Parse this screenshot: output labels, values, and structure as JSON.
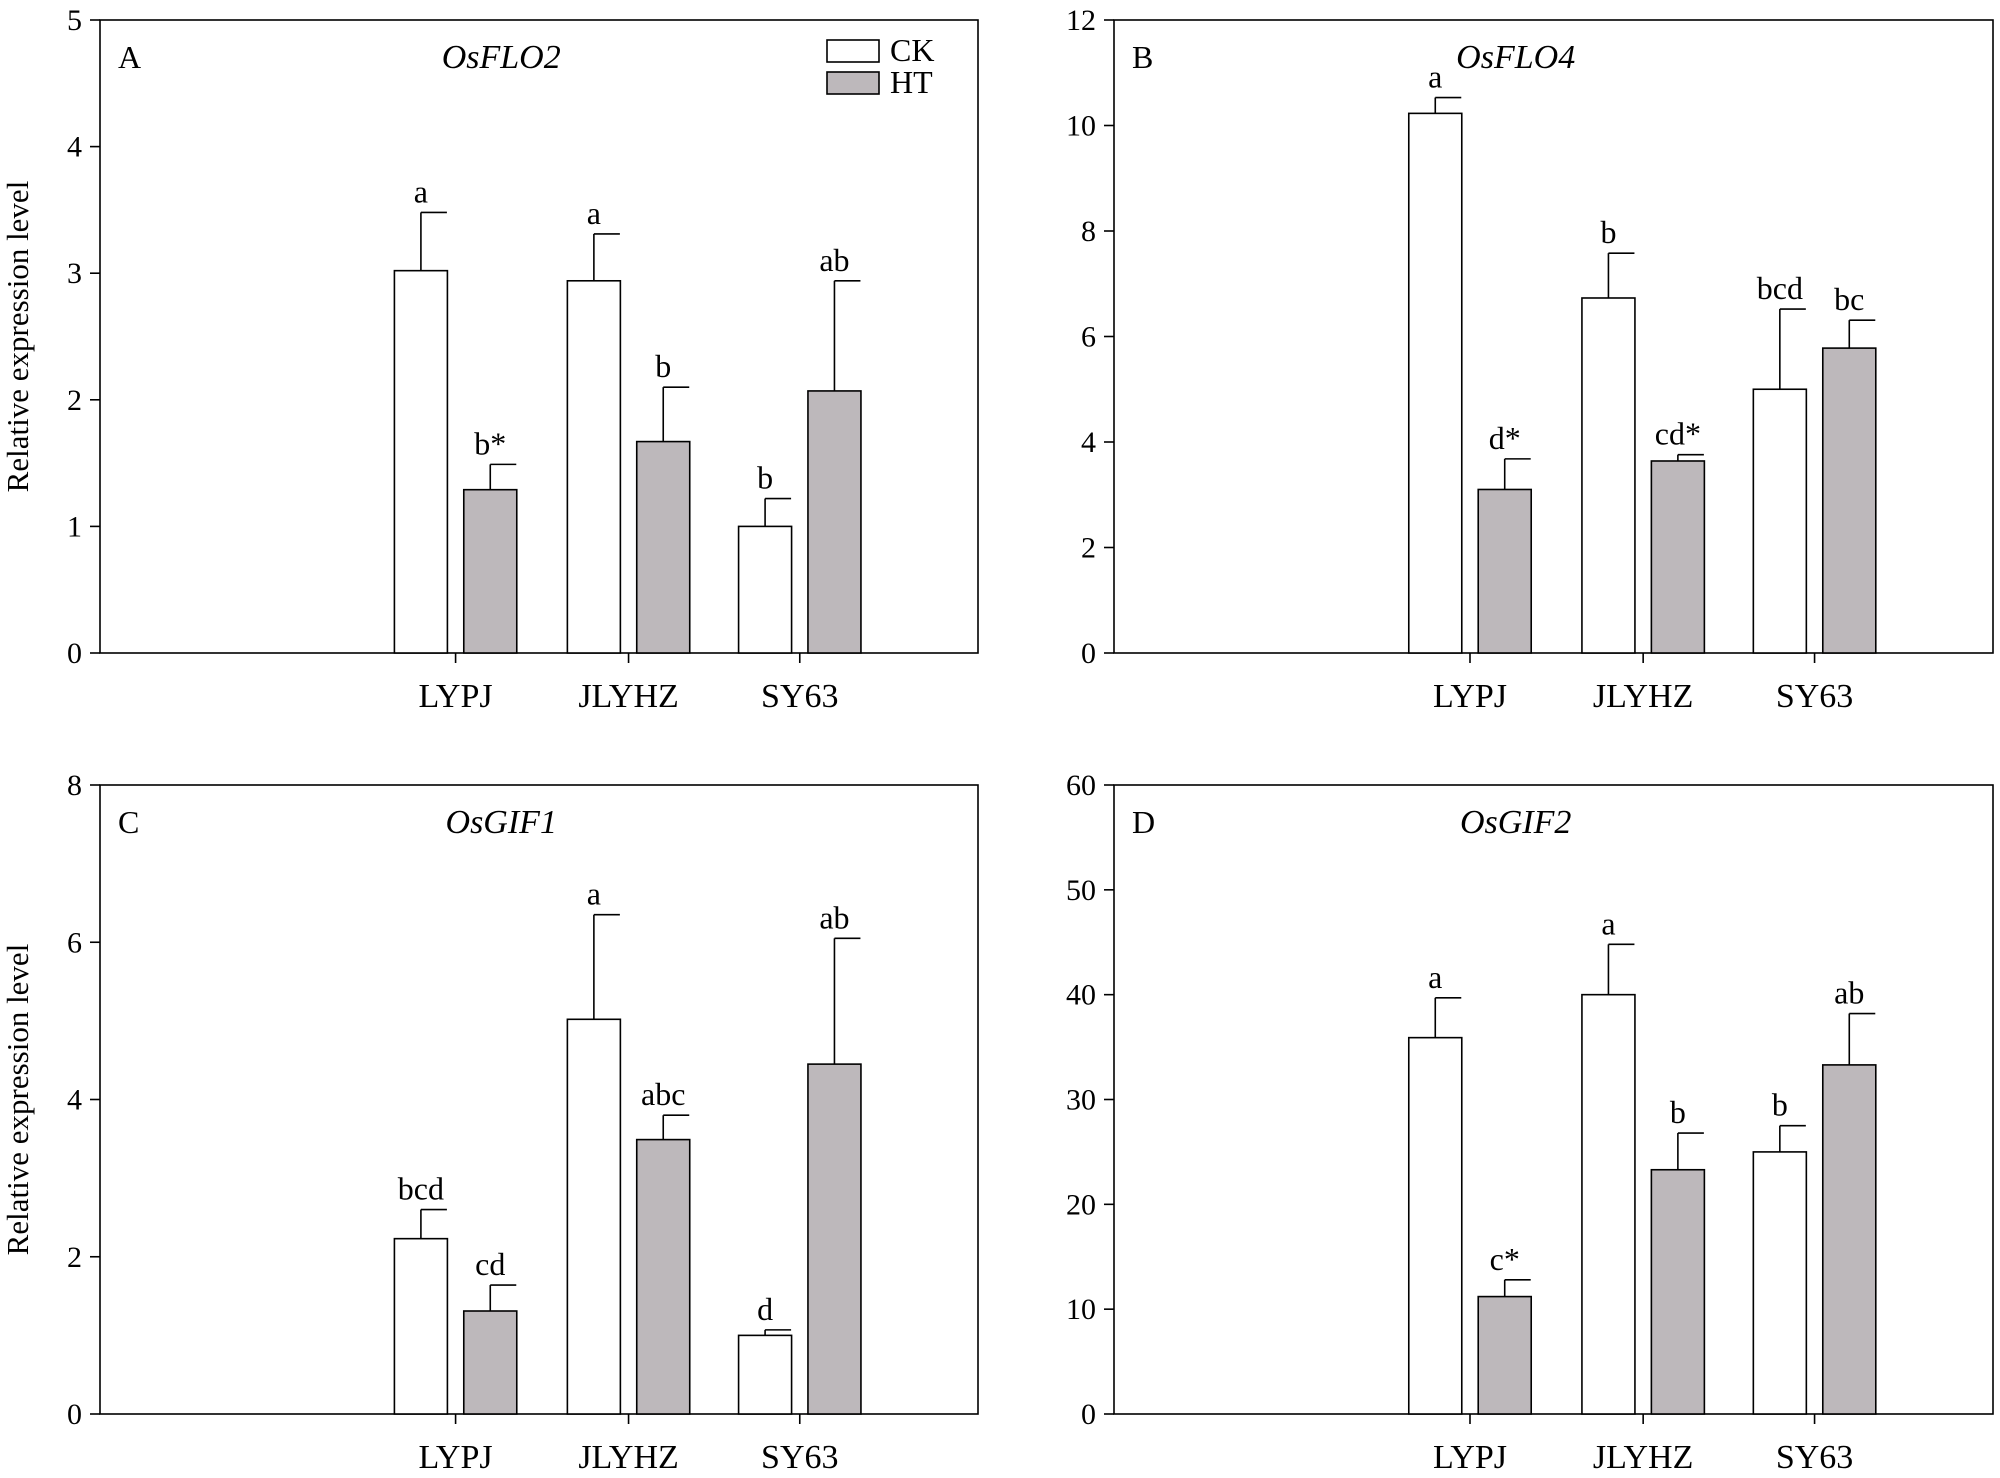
{
  "legend": [
    {
      "name": "CK",
      "color": "#ffffff"
    },
    {
      "name": "HT",
      "color": "#bdb8bb"
    }
  ],
  "chart_data": [
    {
      "type": "bar",
      "panel": "A",
      "title": "OsFLO2",
      "ylabel": "Relative expression level",
      "xlabel": "",
      "categories": [
        "LYPJ",
        "JLYHZ",
        "SY63"
      ],
      "ylim": [
        0,
        5
      ],
      "yticks": [
        0,
        1,
        2,
        3,
        4,
        5
      ],
      "series": [
        {
          "name": "CK",
          "color": "#ffffff",
          "values": [
            3.02,
            2.94,
            1.0
          ],
          "errors": [
            0.46,
            0.37,
            0.22
          ],
          "labels": [
            "a",
            "a",
            "b"
          ]
        },
        {
          "name": "HT",
          "color": "#bdb8bb",
          "values": [
            1.29,
            1.67,
            2.07
          ],
          "errors": [
            0.2,
            0.43,
            0.87
          ],
          "labels": [
            "b*",
            "b",
            "ab"
          ]
        }
      ]
    },
    {
      "type": "bar",
      "panel": "B",
      "title": "OsFLO4",
      "ylabel": "",
      "xlabel": "",
      "categories": [
        "LYPJ",
        "JLYHZ",
        "SY63"
      ],
      "ylim": [
        0,
        12
      ],
      "yticks": [
        0,
        2,
        4,
        6,
        8,
        10,
        12
      ],
      "series": [
        {
          "name": "CK",
          "color": "#ffffff",
          "values": [
            10.23,
            6.73,
            5.0
          ],
          "errors": [
            0.3,
            0.85,
            1.52
          ],
          "labels": [
            "a",
            "b",
            "bcd"
          ]
        },
        {
          "name": "HT",
          "color": "#bdb8bb",
          "values": [
            3.1,
            3.64,
            5.78
          ],
          "errors": [
            0.58,
            0.12,
            0.53
          ],
          "labels": [
            "d*",
            "cd*",
            "bc"
          ]
        }
      ]
    },
    {
      "type": "bar",
      "panel": "C",
      "title": "OsGIF1",
      "ylabel": "Relative expression level",
      "xlabel": "",
      "categories": [
        "LYPJ",
        "JLYHZ",
        "SY63"
      ],
      "ylim": [
        0,
        8
      ],
      "yticks": [
        0,
        2,
        4,
        6,
        8
      ],
      "series": [
        {
          "name": "CK",
          "color": "#ffffff",
          "values": [
            2.23,
            5.02,
            1.0
          ],
          "errors": [
            0.37,
            1.33,
            0.07
          ],
          "labels": [
            "bcd",
            "a",
            "d"
          ]
        },
        {
          "name": "HT",
          "color": "#bdb8bb",
          "values": [
            1.31,
            3.49,
            4.45
          ],
          "errors": [
            0.33,
            0.31,
            1.6
          ],
          "labels": [
            "cd",
            "abc",
            "ab"
          ]
        }
      ]
    },
    {
      "type": "bar",
      "panel": "D",
      "title": "OsGIF2",
      "ylabel": "",
      "xlabel": "",
      "categories": [
        "LYPJ",
        "JLYHZ",
        "SY63"
      ],
      "ylim": [
        0,
        60
      ],
      "yticks": [
        0,
        10,
        20,
        30,
        40,
        50,
        60
      ],
      "series": [
        {
          "name": "CK",
          "color": "#ffffff",
          "values": [
            35.9,
            40.0,
            25.0
          ],
          "errors": [
            3.8,
            4.8,
            2.5
          ],
          "labels": [
            "a",
            "a",
            "b"
          ]
        },
        {
          "name": "HT",
          "color": "#bdb8bb",
          "values": [
            11.2,
            23.3,
            33.3
          ],
          "errors": [
            1.6,
            3.5,
            4.9
          ],
          "labels": [
            "c*",
            "b",
            "ab"
          ]
        }
      ]
    }
  ]
}
